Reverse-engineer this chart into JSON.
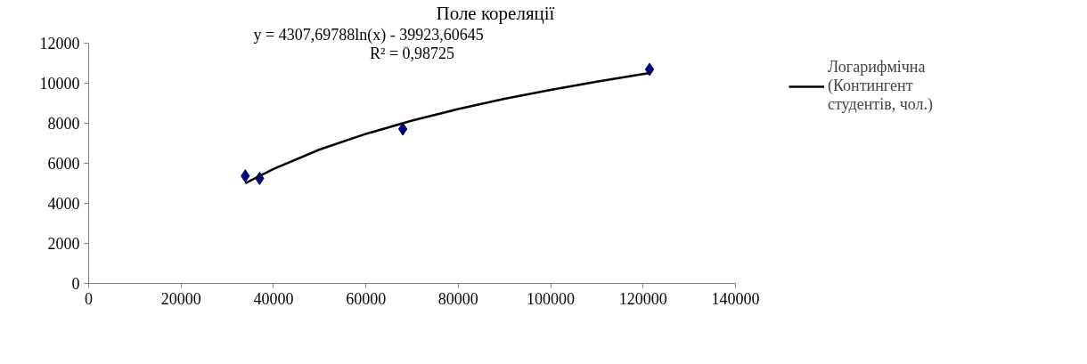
{
  "chart_data": {
    "type": "scatter",
    "title": "Поле кореляції",
    "annotations": [
      "y = 4307,69788ln(x) - 39923,60645",
      "R² = 0,98725"
    ],
    "series": [
      {
        "color": "#000080",
        "marker": "diamond",
        "x": [
          33900,
          37000,
          68000,
          121400
        ],
        "values": [
          5370,
          5250,
          7710,
          10690
        ]
      },
      {
        "type": "line",
        "name": "Логарифмічна (Контингент студентів, чол.)",
        "color": "#000000",
        "line_style": "solid",
        "x": [
          33900,
          40000,
          50000,
          60000,
          70000,
          80000,
          90000,
          100000,
          110000,
          121400
        ],
        "values": [
          5010,
          5720,
          6690,
          7470,
          8130,
          8710,
          9220,
          9670,
          10080,
          10510
        ]
      }
    ],
    "xlim": [
      0,
      140000
    ],
    "xticks": [
      0,
      20000,
      40000,
      60000,
      80000,
      100000,
      120000,
      140000
    ],
    "ylim": [
      0,
      12000
    ],
    "yticks": [
      0,
      2000,
      4000,
      6000,
      8000,
      10000,
      12000
    ],
    "grid": false,
    "legend": "right"
  }
}
